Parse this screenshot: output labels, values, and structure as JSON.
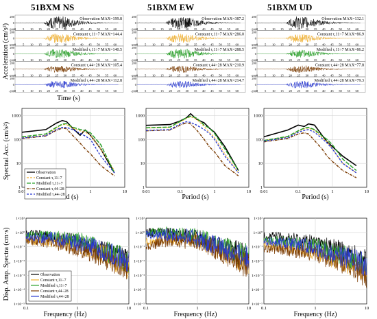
{
  "figure": {
    "stations": [
      "51BXM NS",
      "51BXM EW",
      "51BXM UD"
    ],
    "row_ylabels": [
      "Acceleration (cm/s²)",
      "Spectral Acc. (cm/s²)",
      "Disp. Amp. Spectra (cm·s)"
    ],
    "row_xlabels": [
      "Time (s)",
      "Period (s)",
      "Frequency (Hz)"
    ]
  },
  "colors": {
    "observation": "#000000",
    "constant_11_7": "#f0b030",
    "modified_11_7": "#2aa02a",
    "constant_44_28": "#7a3a00",
    "modified_44_28": "#2a3ad0"
  },
  "chart_data": [
    {
      "type": "line",
      "name": "acceleration time histories",
      "xlabel": "Time (s)",
      "ylabel": "Acceleration (cm/s²)",
      "xlim": [
        0,
        65
      ],
      "x_ticks": [
        0,
        5,
        10,
        15,
        20,
        25,
        30,
        35,
        40,
        45,
        50,
        55,
        60
      ],
      "y_ticks": [
        -200,
        0,
        200
      ],
      "traces": [
        "Observation",
        "Constant τ,11÷7",
        "Modified τ,11÷7",
        "Constant τ,44÷28",
        "Modified τ,44÷28"
      ],
      "max_labels": [
        [
          "MAX=199.8",
          "MAX=144.4",
          "MAX=140.5",
          "MAX=105.4",
          "MAX=112.8"
        ],
        [
          "MAX=387.2",
          "MAX=286.0",
          "MAX=288.5",
          "MAX=210.9",
          "MAX=214.7"
        ],
        [
          "MAX=132.1",
          "MAX=86.9",
          "MAX=86.2",
          "MAX=77.8",
          "MAX=79.3"
        ]
      ]
    },
    {
      "type": "line",
      "name": "response spectra",
      "xscale": "log",
      "yscale": "log",
      "xlabel": "Period (s)",
      "ylabel": "Spectral Acc. (cm/s²)",
      "xlim": [
        0.01,
        10
      ],
      "ylim": [
        1,
        2000
      ],
      "x_tick_labels": [
        "0.01",
        "0.1",
        "1",
        "10"
      ],
      "y_tick_labels": [
        "1",
        "10",
        "100",
        "1000"
      ],
      "legend": {
        "position": "lower-left of first panel",
        "entries": [
          "Observation",
          "Constant τ,11÷7",
          "Modified τ,11÷7",
          "Constant τ,44÷28",
          "Modified τ,44÷28"
        ]
      },
      "period_points": [
        0.01,
        0.05,
        0.1,
        0.15,
        0.2,
        0.3,
        0.5,
        0.7,
        1,
        2,
        5
      ],
      "panels": [
        {
          "title": "51BXM NS",
          "series": [
            {
              "name": "Observation",
              "values": [
                200,
                260,
                480,
                620,
                560,
                300,
                150,
                250,
                150,
                40,
                4
              ]
            },
            {
              "name": "Constant τ,11÷7",
              "values": [
                120,
                150,
                300,
                420,
                420,
                300,
                230,
                200,
                150,
                40,
                5
              ]
            },
            {
              "name": "Modified τ,11÷7",
              "values": [
                130,
                170,
                320,
                440,
                460,
                330,
                260,
                240,
                190,
                60,
                4
              ]
            },
            {
              "name": "Constant τ,44÷28",
              "values": [
                110,
                140,
                240,
                300,
                280,
                150,
                70,
                40,
                25,
                8,
                3
              ]
            },
            {
              "name": "Modified τ,44÷28",
              "values": [
                115,
                145,
                260,
                320,
                320,
                260,
                180,
                140,
                100,
                20,
                4
              ]
            }
          ]
        },
        {
          "title": "51BXM EW",
          "series": [
            {
              "name": "Observation",
              "values": [
                390,
                420,
                600,
                800,
                1200,
                700,
                500,
                300,
                200,
                50,
                5
              ]
            },
            {
              "name": "Constant τ,11÷7",
              "values": [
                300,
                320,
                550,
                750,
                900,
                700,
                350,
                200,
                120,
                25,
                4
              ]
            },
            {
              "name": "Modified τ,11÷7",
              "values": [
                310,
                330,
                580,
                800,
                950,
                800,
                400,
                300,
                180,
                40,
                5
              ]
            },
            {
              "name": "Constant τ,44÷28",
              "values": [
                230,
                250,
                400,
                500,
                450,
                250,
                100,
                50,
                30,
                8,
                3
              ]
            },
            {
              "name": "Modified τ,44÷28",
              "values": [
                240,
                260,
                450,
                560,
                520,
                400,
                260,
                180,
                100,
                20,
                4
              ]
            }
          ]
        },
        {
          "title": "51BXM UD",
          "series": [
            {
              "name": "Observation",
              "values": [
                130,
                250,
                400,
                350,
                450,
                400,
                150,
                80,
                50,
                20,
                8
              ]
            },
            {
              "name": "Constant τ,11÷7",
              "values": [
                90,
                130,
                220,
                280,
                300,
                240,
                120,
                80,
                40,
                10,
                4
              ]
            },
            {
              "name": "Modified τ,11÷7",
              "values": [
                90,
                135,
                230,
                300,
                320,
                260,
                140,
                100,
                60,
                15,
                5
              ]
            },
            {
              "name": "Constant τ,44÷28",
              "values": [
                80,
                110,
                170,
                190,
                170,
                90,
                40,
                20,
                12,
                5,
                2.5
              ]
            },
            {
              "name": "Modified τ,44÷28",
              "values": [
                85,
                120,
                200,
                240,
                260,
                200,
                110,
                70,
                40,
                10,
                4
              ]
            }
          ]
        }
      ]
    },
    {
      "type": "line",
      "name": "displacement amplitude spectra",
      "xscale": "log",
      "yscale": "log",
      "xlabel": "Frequency (Hz)",
      "ylabel": "Disp. Amp. Spectra (cm·s)",
      "xlim": [
        0.1,
        10
      ],
      "ylim": [
        1e-05,
        10
      ],
      "x_tick_labels": [
        "0.1",
        "1",
        "10"
      ],
      "y_tick_labels": [
        "1×10⁻⁵",
        "1×10⁻⁴",
        "1×10⁻³",
        "1×10⁻²",
        "1×10⁻¹",
        "1×10⁰",
        "1×10¹"
      ],
      "legend": {
        "position": "lower-left of first panel",
        "entries": [
          "Observation",
          "Constant τ,11÷7",
          "Modified τ,11÷7",
          "Constant τ,44÷28",
          "Modified τ,44÷28"
        ]
      },
      "trend_freq": [
        0.1,
        0.3,
        1,
        3,
        10
      ],
      "panels": [
        {
          "title": "51BXM NS",
          "series": [
            {
              "name": "Observation",
              "values": [
                0.8,
                0.5,
                0.2,
                0.05,
                0.01
              ]
            },
            {
              "name": "Constant τ,11÷7",
              "values": [
                0.3,
                0.25,
                0.12,
                0.03,
                0.004
              ]
            },
            {
              "name": "Modified τ,11÷7",
              "values": [
                0.6,
                0.5,
                0.3,
                0.06,
                0.01
              ]
            },
            {
              "name": "Constant τ,44÷28",
              "values": [
                0.3,
                0.2,
                0.08,
                0.02,
                0.003
              ]
            },
            {
              "name": "Modified τ,44÷28",
              "values": [
                0.5,
                0.4,
                0.2,
                0.05,
                0.01
              ]
            }
          ]
        },
        {
          "title": "51BXM EW",
          "series": [
            {
              "name": "Observation",
              "values": [
                1.0,
                0.8,
                0.4,
                0.1,
                0.02
              ]
            },
            {
              "name": "Constant τ,11÷7",
              "values": [
                0.2,
                0.4,
                0.3,
                0.05,
                0.005
              ]
            },
            {
              "name": "Modified τ,11÷7",
              "values": [
                1.0,
                0.9,
                0.5,
                0.1,
                0.02
              ]
            },
            {
              "name": "Constant τ,44÷28",
              "values": [
                0.1,
                0.3,
                0.2,
                0.04,
                0.004
              ]
            },
            {
              "name": "Modified τ,44÷28",
              "values": [
                0.8,
                0.7,
                0.4,
                0.08,
                0.015
              ]
            }
          ]
        },
        {
          "title": "51BXM UD",
          "series": [
            {
              "name": "Observation",
              "values": [
                0.6,
                0.4,
                0.2,
                0.06,
                0.01
              ]
            },
            {
              "name": "Constant τ,11÷7",
              "values": [
                0.15,
                0.1,
                0.05,
                0.01,
                0.002
              ]
            },
            {
              "name": "Modified τ,11÷7",
              "values": [
                0.3,
                0.2,
                0.1,
                0.03,
                0.006
              ]
            },
            {
              "name": "Constant τ,44÷28",
              "values": [
                0.08,
                0.06,
                0.03,
                0.008,
                0.001
              ]
            },
            {
              "name": "Modified τ,44÷28",
              "values": [
                0.25,
                0.18,
                0.09,
                0.025,
                0.005
              ]
            }
          ]
        }
      ]
    }
  ]
}
